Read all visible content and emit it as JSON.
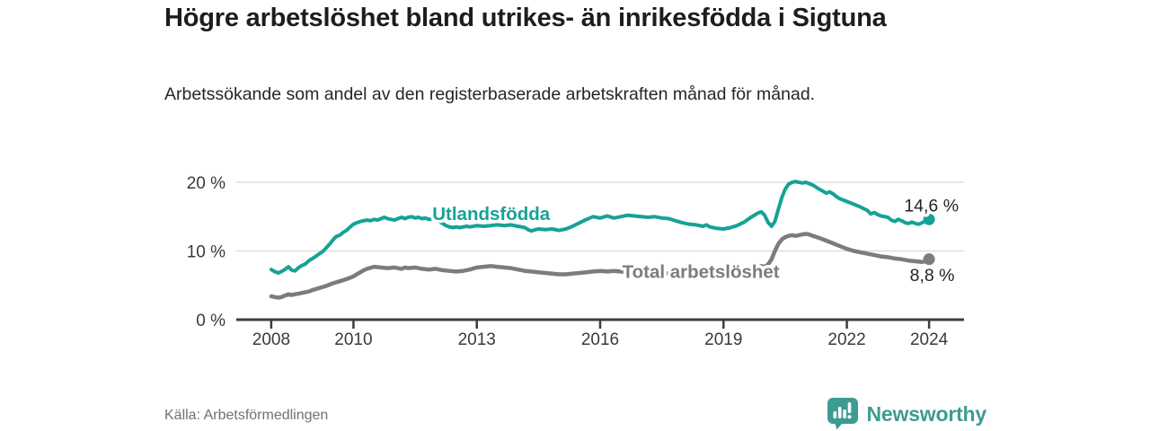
{
  "header": {
    "title": "Högre arbetslöshet bland utrikes- än inrikesfödda i Sigtuna",
    "subtitle": "Arbetssökande som andel av den registerbaserade arbetskraften månad för månad."
  },
  "footer": {
    "source": "Källa: Arbetsförmedlingen",
    "brand": "Newsworthy"
  },
  "colors": {
    "accent_teal": "#16a296",
    "series_gray": "#7b7b80",
    "brand_teal": "#3e9b93",
    "axis": "#3d3d3d",
    "grid": "#d9d9d9",
    "tick_text": "#3a3a3a",
    "annotation_text": "#242424"
  },
  "chart_data": {
    "type": "line",
    "title": "Högre arbetslöshet bland utrikes- än inrikesfödda i Sigtuna",
    "xlabel": "",
    "ylabel": "",
    "xlim": [
      2007.15,
      2024.85
    ],
    "ylim": [
      0,
      20
    ],
    "xticks": [
      2008,
      2010,
      2013,
      2016,
      2019,
      2022,
      2024
    ],
    "xticklabels": [
      "2008",
      "2010",
      "2013",
      "2016",
      "2019",
      "2022",
      "2024"
    ],
    "yticks": [
      0,
      10,
      20
    ],
    "yticklabels": [
      "0 %",
      "10 %",
      "20 %"
    ],
    "grid": "horizontal",
    "legend_position": "inline-labels",
    "series": [
      {
        "name": "Utlandsfödda",
        "color": "#16a296",
        "line_width": 4,
        "label": {
          "text": "Utlandsfödda",
          "x": 2013.35,
          "y": 14.5,
          "anchor": "middle"
        },
        "end_label": {
          "text": "14,6 %",
          "x": 2024.72,
          "y": 15.75,
          "anchor": "end"
        },
        "points": [
          [
            2008,
            7.3
          ],
          [
            2008.08,
            7.0
          ],
          [
            2008.17,
            6.8
          ],
          [
            2008.25,
            7.0
          ],
          [
            2008.33,
            7.3
          ],
          [
            2008.42,
            7.7
          ],
          [
            2008.5,
            7.2
          ],
          [
            2008.58,
            7.1
          ],
          [
            2008.67,
            7.6
          ],
          [
            2008.75,
            7.9
          ],
          [
            2008.83,
            8.1
          ],
          [
            2008.92,
            8.6
          ],
          [
            2009,
            8.9
          ],
          [
            2009.08,
            9.2
          ],
          [
            2009.17,
            9.6
          ],
          [
            2009.25,
            9.9
          ],
          [
            2009.33,
            10.4
          ],
          [
            2009.42,
            11.0
          ],
          [
            2009.5,
            11.6
          ],
          [
            2009.58,
            12.1
          ],
          [
            2009.67,
            12.3
          ],
          [
            2009.75,
            12.7
          ],
          [
            2009.83,
            13.0
          ],
          [
            2009.92,
            13.5
          ],
          [
            2010,
            13.9
          ],
          [
            2010.08,
            14.1
          ],
          [
            2010.17,
            14.3
          ],
          [
            2010.25,
            14.4
          ],
          [
            2010.33,
            14.5
          ],
          [
            2010.42,
            14.4
          ],
          [
            2010.5,
            14.6
          ],
          [
            2010.58,
            14.5
          ],
          [
            2010.67,
            14.7
          ],
          [
            2010.75,
            14.9
          ],
          [
            2010.83,
            14.7
          ],
          [
            2010.92,
            14.6
          ],
          [
            2011,
            14.5
          ],
          [
            2011.08,
            14.7
          ],
          [
            2011.17,
            14.9
          ],
          [
            2011.25,
            14.7
          ],
          [
            2011.33,
            14.9
          ],
          [
            2011.42,
            15.0
          ],
          [
            2011.5,
            14.8
          ],
          [
            2011.58,
            14.9
          ],
          [
            2011.67,
            14.7
          ],
          [
            2011.75,
            14.8
          ],
          [
            2011.83,
            14.6
          ],
          [
            2011.92,
            14.7
          ],
          [
            2012,
            14.5
          ],
          [
            2012.08,
            14.3
          ],
          [
            2012.17,
            14.0
          ],
          [
            2012.25,
            13.7
          ],
          [
            2012.33,
            13.5
          ],
          [
            2012.42,
            13.4
          ],
          [
            2012.5,
            13.5
          ],
          [
            2012.58,
            13.4
          ],
          [
            2012.67,
            13.5
          ],
          [
            2012.75,
            13.6
          ],
          [
            2012.83,
            13.5
          ],
          [
            2012.92,
            13.6
          ],
          [
            2013,
            13.7
          ],
          [
            2013.17,
            13.6
          ],
          [
            2013.33,
            13.7
          ],
          [
            2013.5,
            13.8
          ],
          [
            2013.67,
            13.7
          ],
          [
            2013.83,
            13.8
          ],
          [
            2014,
            13.6
          ],
          [
            2014.17,
            13.4
          ],
          [
            2014.25,
            13.1
          ],
          [
            2014.33,
            12.9
          ],
          [
            2014.42,
            13.1
          ],
          [
            2014.5,
            13.2
          ],
          [
            2014.67,
            13.1
          ],
          [
            2014.83,
            13.2
          ],
          [
            2015,
            13.0
          ],
          [
            2015.17,
            13.2
          ],
          [
            2015.33,
            13.6
          ],
          [
            2015.5,
            14.1
          ],
          [
            2015.67,
            14.6
          ],
          [
            2015.83,
            15.0
          ],
          [
            2016,
            14.8
          ],
          [
            2016.17,
            15.1
          ],
          [
            2016.33,
            14.8
          ],
          [
            2016.5,
            15.0
          ],
          [
            2016.67,
            15.2
          ],
          [
            2016.83,
            15.1
          ],
          [
            2017,
            15.0
          ],
          [
            2017.17,
            14.9
          ],
          [
            2017.33,
            15.0
          ],
          [
            2017.5,
            14.8
          ],
          [
            2017.67,
            14.7
          ],
          [
            2017.83,
            14.4
          ],
          [
            2018,
            14.1
          ],
          [
            2018.17,
            13.9
          ],
          [
            2018.33,
            13.8
          ],
          [
            2018.5,
            13.6
          ],
          [
            2018.58,
            13.8
          ],
          [
            2018.67,
            13.5
          ],
          [
            2018.83,
            13.3
          ],
          [
            2019,
            13.2
          ],
          [
            2019.17,
            13.4
          ],
          [
            2019.33,
            13.7
          ],
          [
            2019.5,
            14.2
          ],
          [
            2019.67,
            14.9
          ],
          [
            2019.83,
            15.5
          ],
          [
            2019.92,
            15.7
          ],
          [
            2020,
            15.2
          ],
          [
            2020.08,
            14.2
          ],
          [
            2020.17,
            13.6
          ],
          [
            2020.25,
            14.3
          ],
          [
            2020.33,
            16.0
          ],
          [
            2020.42,
            17.8
          ],
          [
            2020.5,
            19.0
          ],
          [
            2020.58,
            19.7
          ],
          [
            2020.67,
            20.0
          ],
          [
            2020.75,
            20.1
          ],
          [
            2020.83,
            20.0
          ],
          [
            2020.92,
            19.9
          ],
          [
            2021,
            20.0
          ],
          [
            2021.08,
            19.8
          ],
          [
            2021.17,
            19.6
          ],
          [
            2021.25,
            19.3
          ],
          [
            2021.33,
            19.0
          ],
          [
            2021.42,
            18.7
          ],
          [
            2021.5,
            18.4
          ],
          [
            2021.58,
            18.6
          ],
          [
            2021.67,
            18.3
          ],
          [
            2021.75,
            17.9
          ],
          [
            2021.83,
            17.6
          ],
          [
            2021.92,
            17.4
          ],
          [
            2022,
            17.2
          ],
          [
            2022.17,
            16.8
          ],
          [
            2022.33,
            16.4
          ],
          [
            2022.5,
            15.9
          ],
          [
            2022.58,
            15.4
          ],
          [
            2022.67,
            15.6
          ],
          [
            2022.75,
            15.3
          ],
          [
            2022.83,
            15.1
          ],
          [
            2023,
            14.9
          ],
          [
            2023.08,
            14.5
          ],
          [
            2023.17,
            14.3
          ],
          [
            2023.25,
            14.6
          ],
          [
            2023.33,
            14.4
          ],
          [
            2023.42,
            14.1
          ],
          [
            2023.5,
            14.0
          ],
          [
            2023.58,
            14.2
          ],
          [
            2023.67,
            14.0
          ],
          [
            2023.75,
            13.9
          ],
          [
            2023.83,
            14.1
          ],
          [
            2023.92,
            14.4
          ],
          [
            2024,
            14.6
          ]
        ]
      },
      {
        "name": "Total arbetslöshet",
        "color": "#7b7b80",
        "line_width": 4.5,
        "label": {
          "text": "Total arbetslöshet",
          "x": 2018.45,
          "y": 6.1,
          "anchor": "middle"
        },
        "end_label": {
          "text": "8,8 %",
          "x": 2024.62,
          "y": 5.6,
          "anchor": "end"
        },
        "points": [
          [
            2008,
            3.4
          ],
          [
            2008.08,
            3.3
          ],
          [
            2008.17,
            3.2
          ],
          [
            2008.25,
            3.3
          ],
          [
            2008.33,
            3.5
          ],
          [
            2008.42,
            3.7
          ],
          [
            2008.5,
            3.6
          ],
          [
            2008.58,
            3.7
          ],
          [
            2008.67,
            3.8
          ],
          [
            2008.75,
            3.9
          ],
          [
            2008.83,
            4.0
          ],
          [
            2008.92,
            4.1
          ],
          [
            2009,
            4.3
          ],
          [
            2009.17,
            4.6
          ],
          [
            2009.33,
            4.9
          ],
          [
            2009.5,
            5.3
          ],
          [
            2009.67,
            5.6
          ],
          [
            2009.83,
            5.9
          ],
          [
            2010,
            6.3
          ],
          [
            2010.08,
            6.6
          ],
          [
            2010.17,
            6.9
          ],
          [
            2010.25,
            7.2
          ],
          [
            2010.33,
            7.4
          ],
          [
            2010.5,
            7.7
          ],
          [
            2010.67,
            7.6
          ],
          [
            2010.83,
            7.5
          ],
          [
            2011,
            7.6
          ],
          [
            2011.17,
            7.4
          ],
          [
            2011.25,
            7.6
          ],
          [
            2011.33,
            7.5
          ],
          [
            2011.5,
            7.6
          ],
          [
            2011.67,
            7.4
          ],
          [
            2011.83,
            7.3
          ],
          [
            2012,
            7.4
          ],
          [
            2012.17,
            7.2
          ],
          [
            2012.33,
            7.1
          ],
          [
            2012.5,
            7.0
          ],
          [
            2012.67,
            7.1
          ],
          [
            2012.83,
            7.3
          ],
          [
            2013,
            7.6
          ],
          [
            2013.17,
            7.7
          ],
          [
            2013.33,
            7.8
          ],
          [
            2013.5,
            7.7
          ],
          [
            2013.67,
            7.6
          ],
          [
            2013.83,
            7.5
          ],
          [
            2014,
            7.3
          ],
          [
            2014.17,
            7.1
          ],
          [
            2014.33,
            7.0
          ],
          [
            2014.5,
            6.9
          ],
          [
            2014.67,
            6.8
          ],
          [
            2014.83,
            6.7
          ],
          [
            2015,
            6.6
          ],
          [
            2015.17,
            6.6
          ],
          [
            2015.33,
            6.7
          ],
          [
            2015.5,
            6.8
          ],
          [
            2015.67,
            6.9
          ],
          [
            2015.83,
            7.0
          ],
          [
            2016,
            7.1
          ],
          [
            2016.17,
            7.0
          ],
          [
            2016.33,
            7.1
          ],
          [
            2016.5,
            7.0
          ],
          [
            2016.67,
            6.9
          ],
          [
            2016.83,
            7.0
          ],
          [
            2017,
            6.9
          ],
          [
            2017.17,
            6.8
          ],
          [
            2017.33,
            6.9
          ],
          [
            2017.5,
            6.8
          ],
          [
            2017.67,
            6.7
          ],
          [
            2017.83,
            6.6
          ],
          [
            2018,
            6.5
          ],
          [
            2018.17,
            6.4
          ],
          [
            2018.33,
            6.5
          ],
          [
            2018.5,
            6.4
          ],
          [
            2018.67,
            6.3
          ],
          [
            2018.83,
            6.4
          ],
          [
            2019,
            6.5
          ],
          [
            2019.17,
            6.6
          ],
          [
            2019.33,
            6.7
          ],
          [
            2019.5,
            6.9
          ],
          [
            2019.67,
            7.2
          ],
          [
            2019.83,
            7.6
          ],
          [
            2019.92,
            7.8
          ],
          [
            2020,
            7.7
          ],
          [
            2020.08,
            8.0
          ],
          [
            2020.17,
            8.8
          ],
          [
            2020.25,
            10.0
          ],
          [
            2020.33,
            11.0
          ],
          [
            2020.42,
            11.7
          ],
          [
            2020.5,
            12.0
          ],
          [
            2020.58,
            12.2
          ],
          [
            2020.67,
            12.3
          ],
          [
            2020.75,
            12.2
          ],
          [
            2020.83,
            12.3
          ],
          [
            2020.92,
            12.4
          ],
          [
            2021,
            12.5
          ],
          [
            2021.08,
            12.4
          ],
          [
            2021.17,
            12.2
          ],
          [
            2021.33,
            11.9
          ],
          [
            2021.5,
            11.5
          ],
          [
            2021.67,
            11.1
          ],
          [
            2021.83,
            10.7
          ],
          [
            2022,
            10.3
          ],
          [
            2022.17,
            10.0
          ],
          [
            2022.33,
            9.8
          ],
          [
            2022.5,
            9.6
          ],
          [
            2022.67,
            9.4
          ],
          [
            2022.83,
            9.2
          ],
          [
            2023,
            9.1
          ],
          [
            2023.17,
            8.9
          ],
          [
            2023.33,
            8.8
          ],
          [
            2023.5,
            8.6
          ],
          [
            2023.67,
            8.5
          ],
          [
            2023.83,
            8.4
          ],
          [
            2023.92,
            8.5
          ],
          [
            2024,
            8.8
          ]
        ]
      }
    ]
  }
}
